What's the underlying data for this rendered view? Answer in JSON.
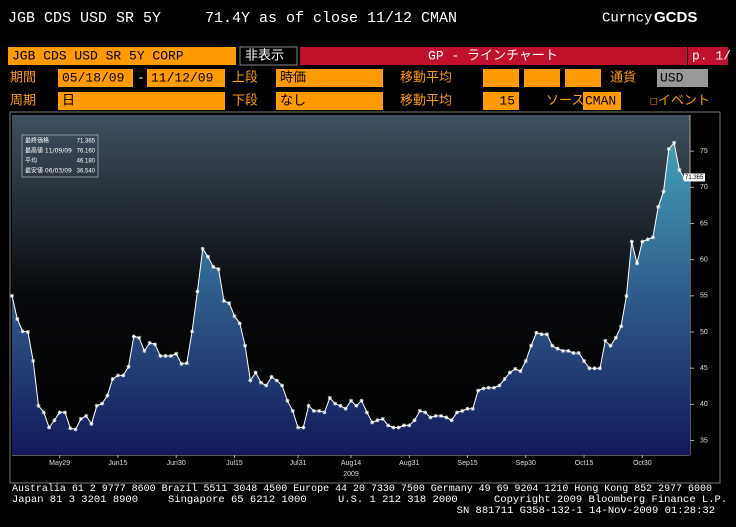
{
  "header": {
    "ticker": "JGB CDS USD SR 5Y",
    "quote": "71.4Y as of close 11/12 CMAN",
    "market": "Curncy",
    "function": "GCDS"
  },
  "toolbar": {
    "security": "JGB CDS USD SR 5Y CORP",
    "hide": "非表示",
    "chart_name": "GP - ラインチャート",
    "page": "p. 1/",
    "period_label": "期間",
    "start": "05/18/09",
    "dash": "-",
    "end": "11/12/09",
    "upper_label": "上段",
    "upper": "時価",
    "ma_label_1": "移動平均",
    "currency_label": "通貨",
    "currency": "USD",
    "cycle_label": "周期",
    "cycle": "日",
    "lower_label": "下段",
    "lower": "なし",
    "ma_label_2": "移動平均",
    "ma_period": "15",
    "source_label": "ソース",
    "source": "CMAN",
    "events": "☐イベント"
  },
  "chart_data": {
    "type": "line",
    "xlabel": "2009",
    "color": "#ffffff",
    "area_top": "#4aaac2",
    "area_bottom": "#14185a",
    "grid": false,
    "stats": [
      {
        "label": "最終価格",
        "value": "71.365"
      },
      {
        "label": "最高値 11/09/09",
        "value": "76.160"
      },
      {
        "label": "平均",
        "value": "46.180"
      },
      {
        "label": "最安値 06/03/09",
        "value": "36.540"
      }
    ],
    "x": [
      "2009-05-18",
      "2009-05-19",
      "2009-05-20",
      "2009-05-21",
      "2009-05-22",
      "2009-05-25",
      "2009-05-26",
      "2009-05-27",
      "2009-05-28",
      "2009-05-29",
      "2009-06-01",
      "2009-06-02",
      "2009-06-03",
      "2009-06-04",
      "2009-06-05",
      "2009-06-08",
      "2009-06-09",
      "2009-06-10",
      "2009-06-11",
      "2009-06-12",
      "2009-06-15",
      "2009-06-16",
      "2009-06-17",
      "2009-06-18",
      "2009-06-19",
      "2009-06-22",
      "2009-06-23",
      "2009-06-24",
      "2009-06-25",
      "2009-06-26",
      "2009-06-29",
      "2009-06-30",
      "2009-07-01",
      "2009-07-02",
      "2009-07-03",
      "2009-07-06",
      "2009-07-07",
      "2009-07-08",
      "2009-07-09",
      "2009-07-10",
      "2009-07-13",
      "2009-07-14",
      "2009-07-15",
      "2009-07-16",
      "2009-07-17",
      "2009-07-20",
      "2009-07-21",
      "2009-07-22",
      "2009-07-23",
      "2009-07-24",
      "2009-07-27",
      "2009-07-28",
      "2009-07-29",
      "2009-07-30",
      "2009-07-31",
      "2009-08-03",
      "2009-08-04",
      "2009-08-05",
      "2009-08-06",
      "2009-08-07",
      "2009-08-10",
      "2009-08-11",
      "2009-08-12",
      "2009-08-13",
      "2009-08-14",
      "2009-08-17",
      "2009-08-18",
      "2009-08-19",
      "2009-08-20",
      "2009-08-21",
      "2009-08-24",
      "2009-08-25",
      "2009-08-26",
      "2009-08-27",
      "2009-08-28",
      "2009-08-31",
      "2009-09-01",
      "2009-09-02",
      "2009-09-03",
      "2009-09-04",
      "2009-09-07",
      "2009-09-08",
      "2009-09-09",
      "2009-09-10",
      "2009-09-11",
      "2009-09-14",
      "2009-09-15",
      "2009-09-16",
      "2009-09-17",
      "2009-09-18",
      "2009-09-21",
      "2009-09-22",
      "2009-09-23",
      "2009-09-24",
      "2009-09-25",
      "2009-09-28",
      "2009-09-29",
      "2009-09-30",
      "2009-10-01",
      "2009-10-02",
      "2009-10-05",
      "2009-10-06",
      "2009-10-07",
      "2009-10-08",
      "2009-10-09",
      "2009-10-12",
      "2009-10-13",
      "2009-10-14",
      "2009-10-15",
      "2009-10-16",
      "2009-10-19",
      "2009-10-20",
      "2009-10-21",
      "2009-10-22",
      "2009-10-23",
      "2009-10-26",
      "2009-10-27",
      "2009-10-28",
      "2009-10-29",
      "2009-10-30",
      "2009-11-02",
      "2009-11-03",
      "2009-11-04",
      "2009-11-05",
      "2009-11-06",
      "2009-11-09",
      "2009-11-10",
      "2009-11-11",
      "2009-11-12"
    ],
    "values": [
      55,
      51.8,
      50.1,
      50,
      46,
      39.8,
      38.9,
      36.8,
      37.8,
      38.9,
      38.9,
      36.7,
      36.54,
      38,
      38.4,
      37.3,
      39.8,
      40.1,
      41.2,
      43.5,
      44,
      44,
      45.2,
      49.4,
      49.2,
      47.4,
      48.5,
      48.3,
      46.7,
      46.7,
      46.7,
      47,
      45.6,
      45.7,
      50.1,
      55.6,
      61.5,
      60.4,
      59,
      58.7,
      54.3,
      54,
      52.2,
      51.2,
      48.1,
      43.3,
      44.4,
      43,
      42.6,
      43.8,
      43.3,
      42.6,
      40.5,
      39.1,
      36.8,
      36.8,
      39.8,
      39.1,
      39.1,
      38.9,
      40.9,
      40.1,
      39.8,
      39.4,
      40.5,
      39.8,
      40.5,
      38.9,
      37.5,
      37.8,
      38,
      37.1,
      36.8,
      36.8,
      37.1,
      37.1,
      37.8,
      39.1,
      38.9,
      38.2,
      38.4,
      38.4,
      38.2,
      37.8,
      38.9,
      39.1,
      39.4,
      39.4,
      41.9,
      42.2,
      42.3,
      42.3,
      42.6,
      43.5,
      44.4,
      44.9,
      44.6,
      46,
      48.1,
      49.9,
      49.7,
      49.7,
      48.1,
      47.7,
      47.4,
      47.4,
      47.1,
      47.1,
      46,
      45,
      45,
      45,
      48.8,
      48.1,
      49.2,
      50.8,
      55,
      62.5,
      59.5,
      62.5,
      62.8,
      63.1,
      67.3,
      69.4,
      75.3,
      76.16,
      72.4,
      71.2,
      71.365
    ],
    "ylim": [
      33,
      80
    ],
    "yticks": [
      35,
      40,
      45,
      50,
      55,
      60,
      65,
      70,
      75
    ],
    "xticks": [
      {
        "value": "2009-05-29",
        "label": "May29"
      },
      {
        "value": "2009-06-15",
        "label": "Jun15"
      },
      {
        "value": "2009-06-30",
        "label": "Jun30"
      },
      {
        "value": "2009-07-15",
        "label": "Jul15"
      },
      {
        "value": "2009-07-31",
        "label": "Jul31"
      },
      {
        "value": "2009-08-14",
        "label": "Aug14"
      },
      {
        "value": "2009-08-31",
        "label": "Aug31"
      },
      {
        "value": "2009-09-15",
        "label": "Sep15"
      },
      {
        "value": "2009-09-30",
        "label": "Sep30"
      },
      {
        "value": "2009-10-15",
        "label": "Oct15"
      },
      {
        "value": "2009-10-30",
        "label": "Oct30"
      }
    ]
  },
  "footer": {
    "line1": "Australia 61 2 9777 8600 Brazil 5511 3048 4500 Europe 44 20 7330 7500 Germany 49 69 9204 1210 Hong Kong 852 2977 6000",
    "line2": [
      "Japan 81 3 3201 8900",
      "Singapore 65 6212 1000",
      "U.S. 1 212 318 2000",
      "Copyright 2009 Bloomberg Finance L.P."
    ],
    "line3": "SN 881711 G358-132-1 14-Nov-2009 01:28:32"
  }
}
